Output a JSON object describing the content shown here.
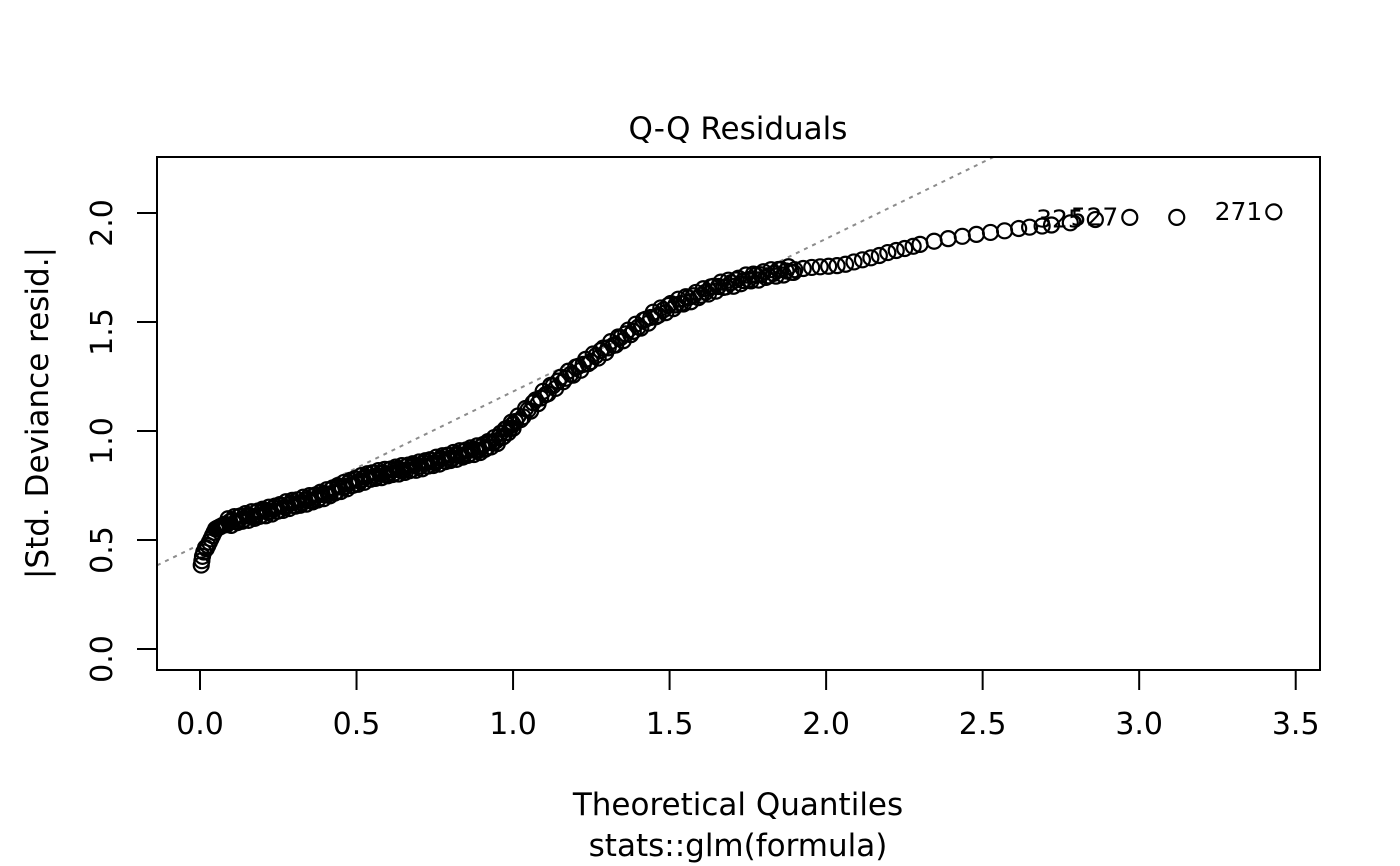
{
  "title": "Q-Q Residuals",
  "xlabel": "Theoretical Quantiles",
  "xlabel2": "stats::glm(formula)",
  "ylabel": "|Std. Deviance resid.|",
  "colors": {
    "foreground": "#000000",
    "background": "#ffffff",
    "reference_line": "#8c8c8c"
  },
  "chart_data": {
    "type": "scatter",
    "title": "Q-Q Residuals",
    "xlabel": "Theoretical Quantiles",
    "xlabel_line2": "stats::glm(formula)",
    "ylabel": "|Std. Deviance resid.|",
    "grid": false,
    "legend": "none",
    "xlim": [
      -0.14,
      3.58
    ],
    "ylim": [
      -0.22,
      2.26
    ],
    "x_ticks": [
      0.0,
      0.5,
      1.0,
      1.5,
      2.0,
      2.5,
      3.0,
      3.5
    ],
    "x_tick_labels": [
      "0.0",
      "0.5",
      "1.0",
      "1.5",
      "2.0",
      "2.5",
      "3.0",
      "3.5"
    ],
    "y_ticks": [
      0.0,
      0.5,
      1.0,
      1.5,
      2.0
    ],
    "y_tick_labels": [
      "0.0",
      "0.5",
      "1.0",
      "1.5",
      "2.0"
    ],
    "marker": {
      "shape": "open-circle",
      "radius_px": 7.5,
      "stroke_px": 2.2,
      "color": "#000000"
    },
    "reference_line": {
      "style": "dotted",
      "color": "#8c8c8c",
      "slope": 0.701,
      "intercept": 0.48
    },
    "start_stack_points": [
      [
        0.004,
        0.385
      ],
      [
        0.006,
        0.405
      ],
      [
        0.008,
        0.425
      ],
      [
        0.012,
        0.445
      ],
      [
        0.018,
        0.465
      ]
    ],
    "curve_control_points": [
      [
        0.02,
        0.46
      ],
      [
        0.03,
        0.49
      ],
      [
        0.04,
        0.52
      ],
      [
        0.05,
        0.55
      ],
      [
        0.07,
        0.565
      ],
      [
        0.09,
        0.58
      ],
      [
        0.12,
        0.595
      ],
      [
        0.16,
        0.61
      ],
      [
        0.2,
        0.625
      ],
      [
        0.24,
        0.64
      ],
      [
        0.28,
        0.66
      ],
      [
        0.32,
        0.675
      ],
      [
        0.36,
        0.69
      ],
      [
        0.4,
        0.71
      ],
      [
        0.45,
        0.74
      ],
      [
        0.5,
        0.77
      ],
      [
        0.55,
        0.795
      ],
      [
        0.6,
        0.81
      ],
      [
        0.65,
        0.825
      ],
      [
        0.7,
        0.84
      ],
      [
        0.75,
        0.86
      ],
      [
        0.8,
        0.88
      ],
      [
        0.85,
        0.9
      ],
      [
        0.9,
        0.92
      ],
      [
        0.95,
        0.96
      ],
      [
        1.0,
        1.03
      ],
      [
        1.05,
        1.1
      ],
      [
        1.1,
        1.17
      ],
      [
        1.15,
        1.23
      ],
      [
        1.2,
        1.28
      ],
      [
        1.25,
        1.33
      ],
      [
        1.3,
        1.38
      ],
      [
        1.35,
        1.43
      ],
      [
        1.4,
        1.48
      ],
      [
        1.45,
        1.53
      ],
      [
        1.5,
        1.57
      ],
      [
        1.55,
        1.6
      ],
      [
        1.6,
        1.63
      ],
      [
        1.65,
        1.66
      ],
      [
        1.7,
        1.68
      ],
      [
        1.75,
        1.7
      ],
      [
        1.8,
        1.715
      ],
      [
        1.85,
        1.73
      ],
      [
        1.9,
        1.74
      ],
      [
        1.95,
        1.75
      ],
      [
        2.0,
        1.755
      ],
      [
        2.05,
        1.76
      ],
      [
        2.1,
        1.78
      ],
      [
        2.16,
        1.8
      ],
      [
        2.2,
        1.82
      ],
      [
        2.26,
        1.84
      ],
      [
        2.31,
        1.86
      ],
      [
        2.36,
        1.875
      ],
      [
        2.42,
        1.89
      ],
      [
        2.47,
        1.9
      ],
      [
        2.52,
        1.91
      ],
      [
        2.58,
        1.92
      ],
      [
        2.62,
        1.93
      ]
    ],
    "density_segments": [
      {
        "from": 0.02,
        "to": 1.0,
        "step": 0.005
      },
      {
        "from": 1.0,
        "to": 1.9,
        "step": 0.008
      },
      {
        "from": 1.9,
        "to": 2.3,
        "step": 0.027
      },
      {
        "from": 2.3,
        "to": 2.62,
        "step": 0.045
      }
    ],
    "jitter": {
      "amplitude_y": 0.018,
      "from_x": 0.08,
      "to_x": 1.9
    },
    "tail_points": [
      [
        2.65,
        1.935
      ],
      [
        2.69,
        1.94
      ],
      [
        2.72,
        1.945
      ],
      [
        2.78,
        1.955
      ],
      [
        3.12,
        1.98
      ]
    ],
    "labeled_points": [
      {
        "label": "325",
        "x": 2.86,
        "y": 1.97
      },
      {
        "label": "527",
        "x": 2.97,
        "y": 1.98
      },
      {
        "label": "271",
        "x": 3.43,
        "y": 2.005
      }
    ]
  }
}
